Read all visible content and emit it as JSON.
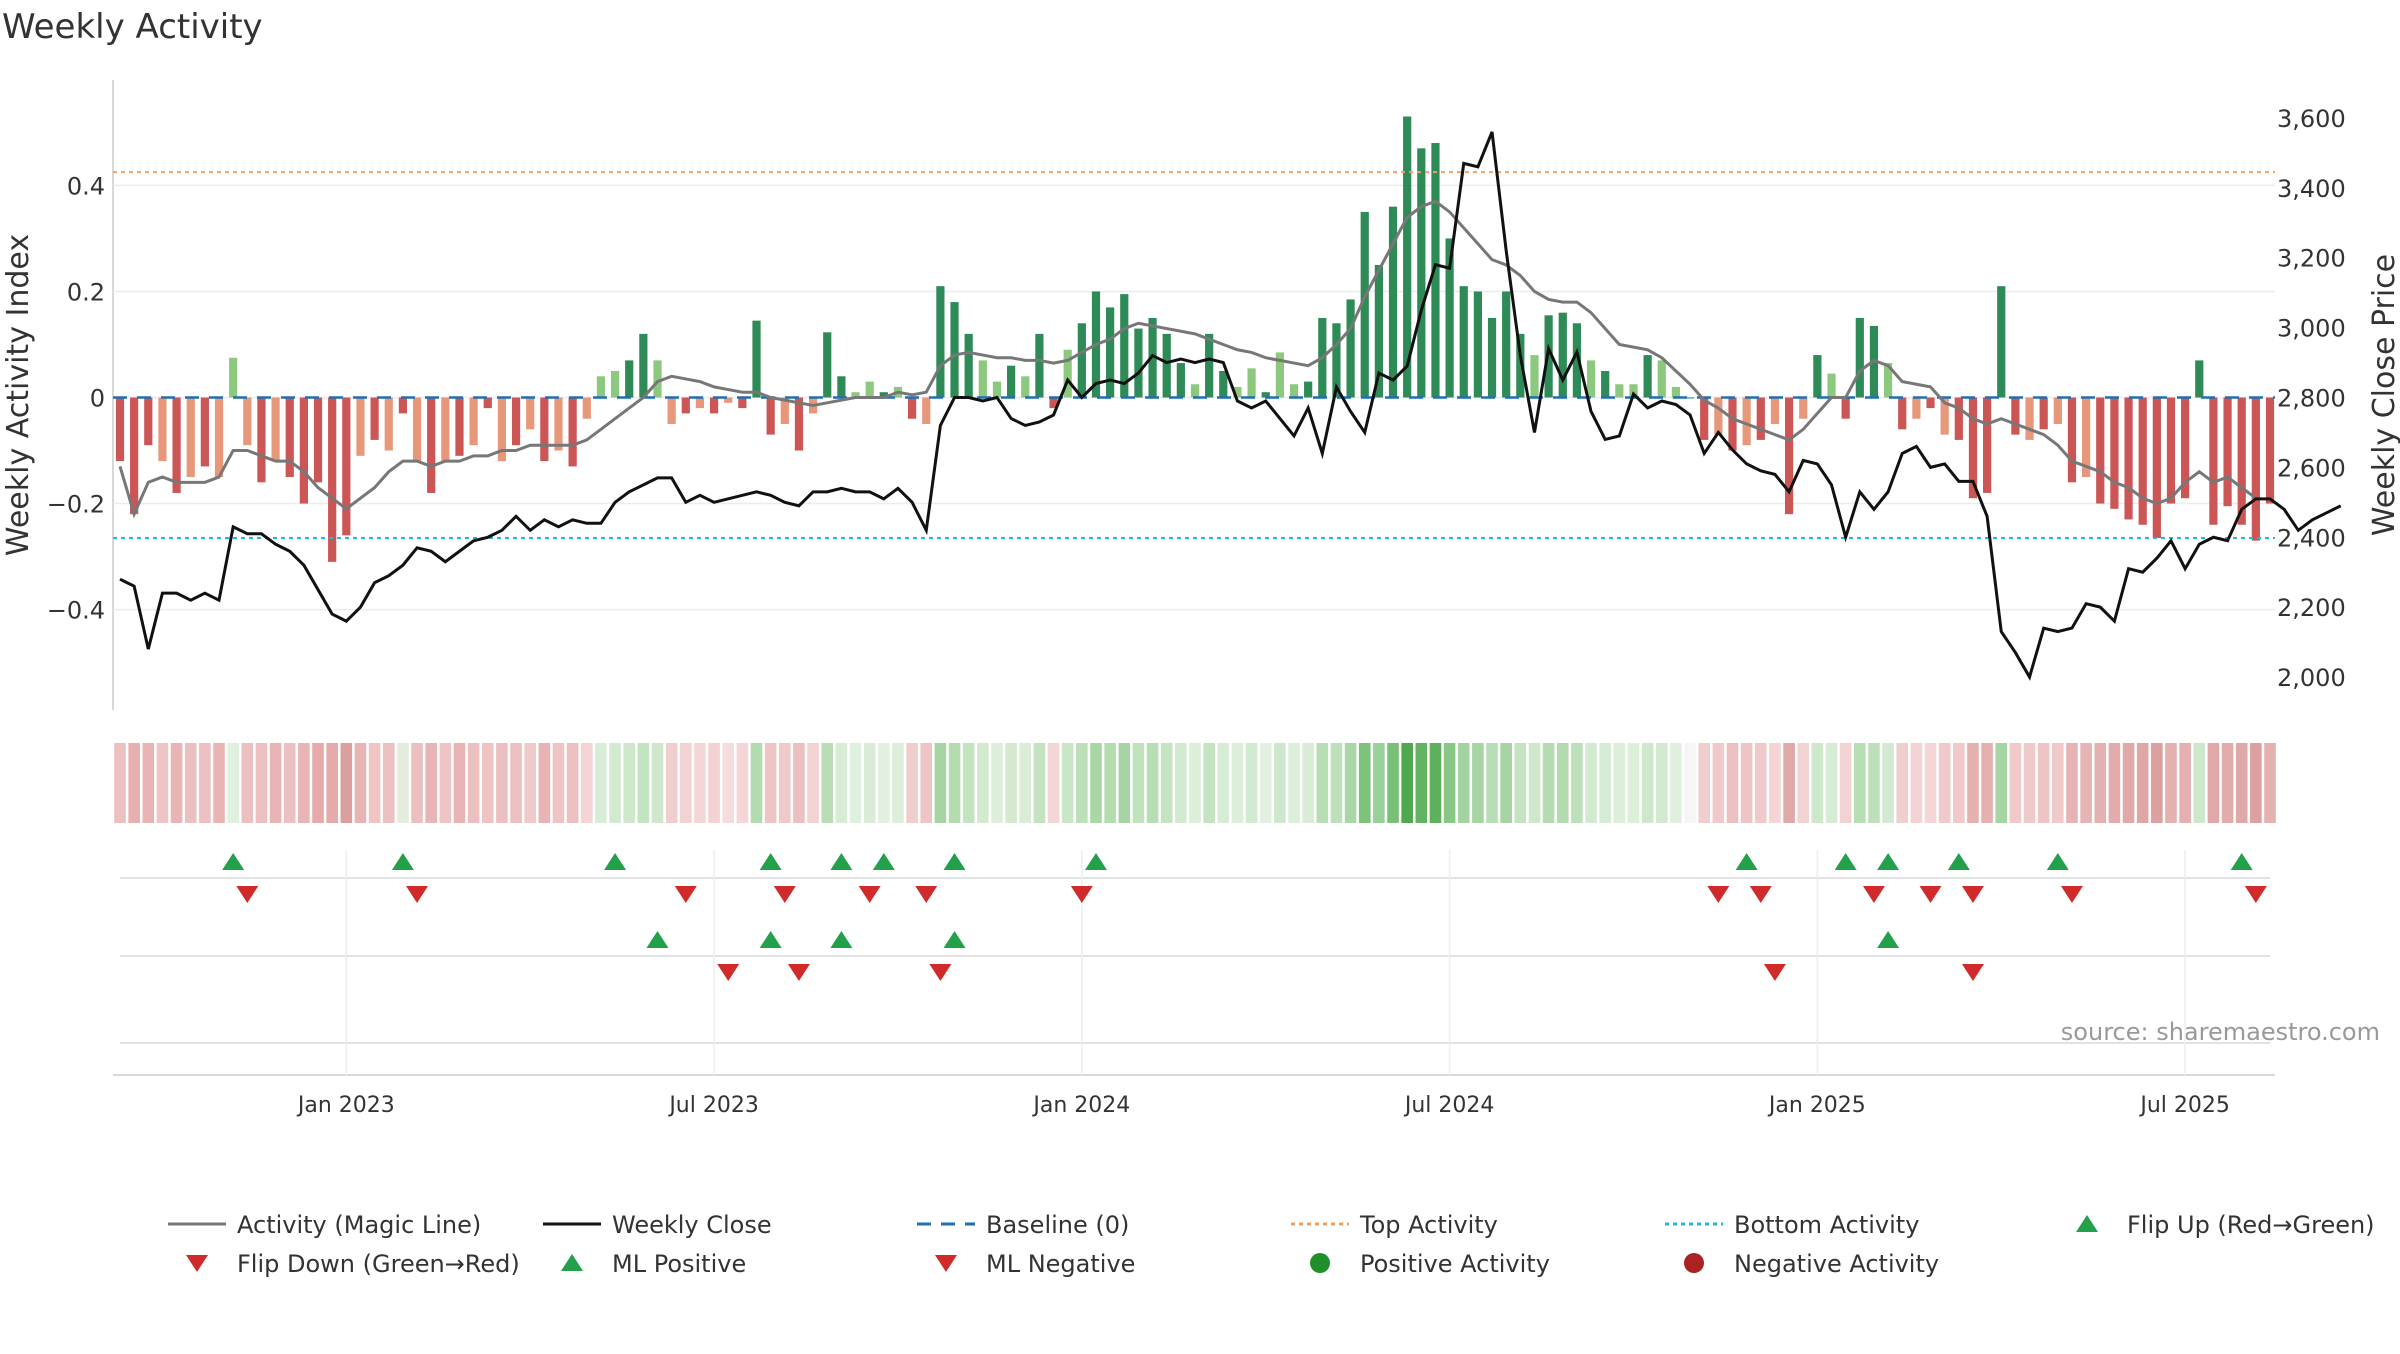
{
  "chart_data": {
    "type": "bar",
    "title": "Weekly Activity",
    "ylabel": "Weekly Activity Index",
    "y2label": "Weekly Close Price",
    "ylim": [
      -0.58,
      0.58
    ],
    "y2lim": [
      1920,
      3680
    ],
    "y_ticks": [
      {
        "v": 0.4,
        "label": "0.4"
      },
      {
        "v": 0.2,
        "label": "0.2"
      },
      {
        "v": 0,
        "label": "0"
      },
      {
        "v": -0.2,
        "label": "−0.2"
      },
      {
        "v": -0.4,
        "label": "−0.4"
      }
    ],
    "y2_ticks": [
      {
        "v": 3600,
        "label": "3,600"
      },
      {
        "v": 3400,
        "label": "3,400"
      },
      {
        "v": 3200,
        "label": "3,200"
      },
      {
        "v": 3000,
        "label": "3,000"
      },
      {
        "v": 2800,
        "label": "2,800"
      },
      {
        "v": 2600,
        "label": "2,600"
      },
      {
        "v": 2400,
        "label": "2,400"
      },
      {
        "v": 2200,
        "label": "2,200"
      },
      {
        "v": 2000,
        "label": "2,000"
      }
    ],
    "x_ticks": [
      {
        "i": 16,
        "label": "Jan 2023"
      },
      {
        "i": 42,
        "label": "Jul 2023"
      },
      {
        "i": 68,
        "label": "Jan 2024"
      },
      {
        "i": 94,
        "label": "Jul 2024"
      },
      {
        "i": 120,
        "label": "Jan 2025"
      },
      {
        "i": 146,
        "label": "Jul 2025"
      }
    ],
    "top_activity": 0.425,
    "bottom_activity": -0.265,
    "baseline": 0,
    "source": "source: sharemaestro.com",
    "activity": [
      -0.12,
      -0.22,
      -0.09,
      -0.12,
      -0.18,
      -0.15,
      -0.13,
      -0.15,
      0.075,
      -0.09,
      -0.16,
      -0.12,
      -0.15,
      -0.2,
      -0.16,
      -0.31,
      -0.26,
      -0.11,
      -0.08,
      -0.1,
      -0.03,
      -0.12,
      -0.18,
      -0.12,
      -0.11,
      -0.09,
      -0.02,
      -0.12,
      -0.09,
      -0.06,
      -0.12,
      -0.1,
      -0.13,
      -0.04,
      0.04,
      0.05,
      0.07,
      0.12,
      0.07,
      -0.05,
      -0.03,
      -0.02,
      -0.03,
      -0.01,
      -0.02,
      0.145,
      -0.07,
      -0.05,
      -0.1,
      -0.03,
      0.123,
      0.04,
      0.01,
      0.03,
      0.01,
      0.02,
      -0.04,
      -0.05,
      0.21,
      0.18,
      0.12,
      0.07,
      0.03,
      0.06,
      0.04,
      0.12,
      -0.02,
      0.09,
      0.14,
      0.2,
      0.17,
      0.195,
      0.13,
      0.15,
      0.12,
      0.065,
      0.025,
      0.12,
      0.05,
      0.02,
      0.055,
      0.01,
      0.085,
      0.025,
      0.03,
      0.15,
      0.14,
      0.185,
      0.35,
      0.25,
      0.36,
      0.53,
      0.47,
      0.48,
      0.3,
      0.21,
      0.2,
      0.15,
      0.2,
      0.12,
      0.08,
      0.155,
      0.16,
      0.14,
      0.07,
      0.05,
      0.025,
      0.025,
      0.08,
      0.07,
      0.02,
      0.0,
      -0.08,
      -0.07,
      -0.1,
      -0.09,
      -0.08,
      -0.05,
      -0.22,
      -0.04,
      0.08,
      0.045,
      -0.04,
      0.15,
      0.135,
      0.065,
      -0.06,
      -0.04,
      -0.02,
      -0.07,
      -0.08,
      -0.19,
      -0.18,
      0.21,
      -0.07,
      -0.08,
      -0.06,
      -0.05,
      -0.16,
      -0.15,
      -0.2,
      -0.21,
      -0.23,
      -0.24,
      -0.265,
      -0.2,
      -0.19,
      0.07,
      -0.24,
      -0.205,
      -0.24,
      -0.27,
      -0.2
    ],
    "magic_line": [
      -0.13,
      -0.22,
      -0.16,
      -0.15,
      -0.16,
      -0.16,
      -0.16,
      -0.15,
      -0.1,
      -0.1,
      -0.11,
      -0.12,
      -0.12,
      -0.14,
      -0.17,
      -0.19,
      -0.21,
      -0.19,
      -0.17,
      -0.14,
      -0.12,
      -0.12,
      -0.13,
      -0.12,
      -0.12,
      -0.11,
      -0.11,
      -0.1,
      -0.1,
      -0.09,
      -0.09,
      -0.09,
      -0.09,
      -0.08,
      -0.06,
      -0.04,
      -0.02,
      0.0,
      0.03,
      0.04,
      0.035,
      0.03,
      0.02,
      0.015,
      0.01,
      0.01,
      0.0,
      -0.005,
      -0.01,
      -0.015,
      -0.01,
      -0.005,
      0.0,
      0.0,
      0.0,
      0.01,
      0.005,
      0.01,
      0.06,
      0.08,
      0.085,
      0.08,
      0.075,
      0.075,
      0.07,
      0.07,
      0.065,
      0.07,
      0.085,
      0.1,
      0.11,
      0.13,
      0.14,
      0.135,
      0.13,
      0.125,
      0.12,
      0.11,
      0.1,
      0.09,
      0.085,
      0.075,
      0.07,
      0.065,
      0.06,
      0.075,
      0.1,
      0.13,
      0.19,
      0.24,
      0.29,
      0.34,
      0.36,
      0.37,
      0.35,
      0.32,
      0.29,
      0.26,
      0.25,
      0.23,
      0.2,
      0.185,
      0.18,
      0.18,
      0.16,
      0.13,
      0.1,
      0.095,
      0.09,
      0.075,
      0.05,
      0.025,
      -0.005,
      -0.02,
      -0.04,
      -0.05,
      -0.06,
      -0.07,
      -0.08,
      -0.06,
      -0.03,
      0.0,
      0.0,
      0.05,
      0.07,
      0.06,
      0.03,
      0.025,
      0.02,
      -0.01,
      -0.02,
      -0.04,
      -0.05,
      -0.04,
      -0.05,
      -0.06,
      -0.07,
      -0.09,
      -0.12,
      -0.13,
      -0.14,
      -0.16,
      -0.17,
      -0.19,
      -0.2,
      -0.19,
      -0.16,
      -0.14,
      -0.16,
      -0.15,
      -0.17,
      -0.19
    ],
    "close": [
      2280,
      2260,
      2080,
      2240,
      2240,
      2220,
      2240,
      2220,
      2430,
      2410,
      2410,
      2380,
      2360,
      2320,
      2250,
      2180,
      2160,
      2200,
      2270,
      2290,
      2320,
      2370,
      2360,
      2330,
      2360,
      2390,
      2400,
      2420,
      2460,
      2420,
      2450,
      2430,
      2450,
      2440,
      2440,
      2500,
      2530,
      2550,
      2570,
      2570,
      2500,
      2520,
      2500,
      2510,
      2520,
      2530,
      2520,
      2500,
      2490,
      2530,
      2530,
      2540,
      2530,
      2530,
      2510,
      2540,
      2500,
      2420,
      2720,
      2800,
      2800,
      2790,
      2800,
      2740,
      2720,
      2730,
      2750,
      2850,
      2800,
      2840,
      2850,
      2840,
      2870,
      2920,
      2900,
      2910,
      2900,
      2910,
      2900,
      2790,
      2770,
      2790,
      2740,
      2690,
      2770,
      2640,
      2830,
      2760,
      2700,
      2870,
      2850,
      2890,
      3050,
      3180,
      3170,
      3470,
      3460,
      3560,
      3220,
      2920,
      2700,
      2940,
      2850,
      2930,
      2760,
      2680,
      2690,
      2810,
      2770,
      2790,
      2780,
      2750,
      2640,
      2700,
      2650,
      2610,
      2590,
      2580,
      2530,
      2620,
      2610,
      2550,
      2400,
      2530,
      2480,
      2530,
      2640,
      2660,
      2600,
      2610,
      2560,
      2560,
      2460,
      2130,
      2070,
      2000,
      2140,
      2130,
      2140,
      2210,
      2200,
      2160,
      2310,
      2300,
      2340,
      2390,
      2310,
      2380,
      2400,
      2390,
      2480,
      2510,
      2510,
      2480,
      2420,
      2450,
      2470,
      2490
    ],
    "strip_colors": [
      "#ecc0c0",
      "#e7b0b0",
      "#e8b4b4",
      "#eec4c4",
      "#e8b4b4",
      "#ecc0c0",
      "#ecc0c0",
      "#e8b4b4",
      "#dff0df",
      "#ecc0c0",
      "#ecc0c0",
      "#e8b4b4",
      "#ecc0c0",
      "#e8b4b4",
      "#e6aaaa",
      "#e6aaaa",
      "#daa0a0",
      "#e8b4b4",
      "#eec4c4",
      "#ecc0c0",
      "#e4ecde",
      "#ecc0c0",
      "#e8b4b4",
      "#eec4c4",
      "#e8b4b4",
      "#ecc0c0",
      "#eec4c4",
      "#ecc0c0",
      "#ecc0c0",
      "#f0caca",
      "#e8b4b4",
      "#eec4c4",
      "#ecc0c0",
      "#f4d4d4",
      "#d8ecd6",
      "#d2eacf",
      "#cfe8cc",
      "#c4e3c1",
      "#cfe8cc",
      "#f0cece",
      "#f2d2d2",
      "#f4d6d6",
      "#f2d2d2",
      "#f6dcdc",
      "#f4d6d6",
      "#b2dcb0",
      "#eec4c4",
      "#f0caca",
      "#ecc0c0",
      "#f2d2d2",
      "#b8deb5",
      "#d6ecd4",
      "#e0f0de",
      "#d8ecd6",
      "#e2f0e0",
      "#dcefd9",
      "#f0cece",
      "#eec4c4",
      "#a6d5a3",
      "#b4dcb0",
      "#c4e3c1",
      "#d4eacf",
      "#ddefdb",
      "#d4eacf",
      "#d8ecd6",
      "#c4e3c1",
      "#f4d6d6",
      "#c9e6c6",
      "#bde0ba",
      "#a9d8a6",
      "#b4dcb0",
      "#a6d5a3",
      "#c0e2bd",
      "#b8deb5",
      "#c4e3c1",
      "#d2eacf",
      "#dcefd9",
      "#c4e3c1",
      "#d6ecd4",
      "#dcefd9",
      "#d2eacf",
      "#e2f0e0",
      "#cde8ca",
      "#dcefd9",
      "#d8ecd6",
      "#b8deb5",
      "#bde0ba",
      "#aad7a7",
      "#7cc279",
      "#9ad09a",
      "#78c075",
      "#4fa84d",
      "#62b260",
      "#5eb05b",
      "#89c787",
      "#a2d3a0",
      "#a6d5a3",
      "#b8deb5",
      "#a6d5a3",
      "#c4e3c1",
      "#cfe8cc",
      "#b4dcb0",
      "#b2dcb0",
      "#bde0ba",
      "#d2eacf",
      "#d6ecd4",
      "#dcefd9",
      "#dcefd9",
      "#cde8ca",
      "#d2eacf",
      "#e0f0de",
      "#f6f6f6",
      "#f0cece",
      "#f0caca",
      "#ecc0c0",
      "#eec4c4",
      "#f0caca",
      "#f4d4d4",
      "#e0a8a8",
      "#f2d2d2",
      "#cde8ca",
      "#d6ecd4",
      "#f2d2d2",
      "#b8deb5",
      "#bde0ba",
      "#d2eacf",
      "#f0cece",
      "#f2d2d2",
      "#f4d6d6",
      "#f0caca",
      "#f0caca",
      "#e4b0b0",
      "#e4b0b0",
      "#a6d5a3",
      "#f0caca",
      "#f0caca",
      "#eec4c4",
      "#f0caca",
      "#e6b4b4",
      "#e6b4b4",
      "#e4b0b0",
      "#e2acac",
      "#e0a8a8",
      "#dfa6a6",
      "#dca0a0",
      "#e4b0b0",
      "#e4b0b0",
      "#cde8ca",
      "#e0a8a8",
      "#e2acac",
      "#e0a8a8",
      "#dca0a0",
      "#e4b0b0"
    ],
    "flip_up": [
      8,
      20,
      35,
      46,
      51,
      54,
      59,
      69,
      115,
      122,
      125,
      130,
      137,
      150
    ],
    "flip_down": [
      9,
      21,
      40,
      47,
      53,
      57,
      68,
      113,
      116,
      124,
      128,
      131,
      138,
      151
    ],
    "ml_positive": [
      38,
      46,
      51,
      59,
      125
    ],
    "ml_negative": [
      43,
      48,
      58,
      117,
      131
    ],
    "colors": {
      "pos_strong": "#2e8b57",
      "pos_light": "#8cc97f",
      "neg_strong": "#cc5555",
      "neg_light": "#e8987a",
      "magic": "#777777",
      "close": "#111111",
      "baseline": "#1f6fb2",
      "top": "#f0a060",
      "bottom": "#22b8d0",
      "marker_up": "#22a04a",
      "marker_down": "#d02a2a",
      "positive_dot": "#1f8f2a",
      "negative_dot": "#aa2222"
    },
    "legend": [
      {
        "label": "Activity (Magic Line)",
        "icon": "line-solid-gray"
      },
      {
        "label": "Weekly Close",
        "icon": "line-solid-black"
      },
      {
        "label": "Baseline (0)",
        "icon": "line-dashed-blue"
      },
      {
        "label": "Top Activity",
        "icon": "line-dotted-orange"
      },
      {
        "label": "Bottom Activity",
        "icon": "line-dotted-cyan"
      },
      {
        "label": "Flip Up (Red→Green)",
        "icon": "triangle-up-green"
      },
      {
        "label": "Flip Down (Green→Red)",
        "icon": "triangle-down-red"
      },
      {
        "label": "ML Positive",
        "icon": "triangle-up-green"
      },
      {
        "label": "ML Negative",
        "icon": "triangle-down-red"
      },
      {
        "label": "Positive Activity",
        "icon": "circle-green"
      },
      {
        "label": "Negative Activity",
        "icon": "circle-red"
      }
    ]
  }
}
